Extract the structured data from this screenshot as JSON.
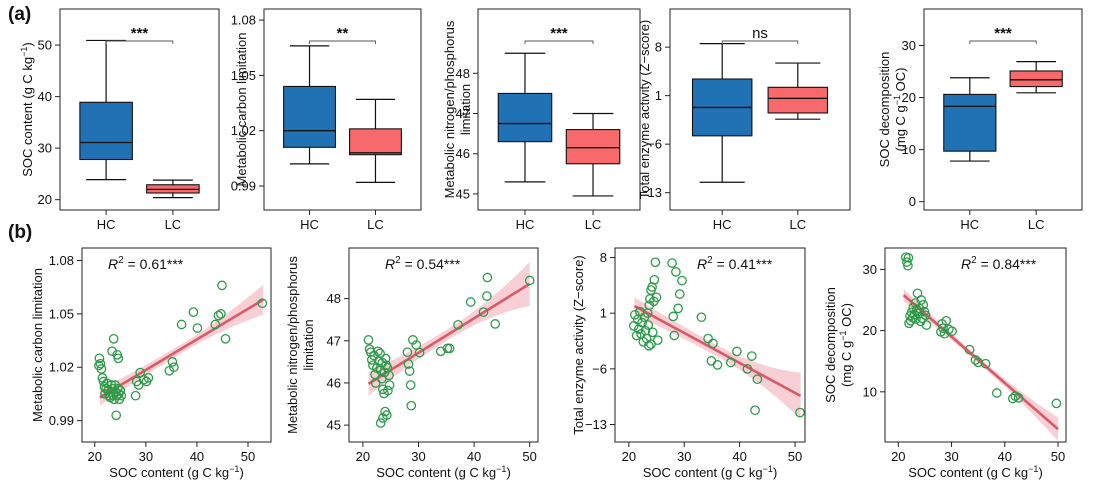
{
  "panel_labels": {
    "a": "(a)",
    "b": "(b)"
  },
  "chart_data": [
    {
      "type": "box",
      "panel": "a",
      "ylabel": "SOC content (g C kg⁻¹)",
      "ylabel_parts": [
        "SOC content (g C kg",
        "−1",
        ")"
      ],
      "ylim": [
        18,
        57
      ],
      "yticks": [
        20,
        30,
        40,
        50
      ],
      "yticklabels": [
        "20",
        "30",
        "40",
        "50"
      ],
      "categories": [
        "HC",
        "LC"
      ],
      "colors": [
        "#2171b5",
        "#f8696b"
      ],
      "significance": "***",
      "boxes": [
        {
          "min": 23.9,
          "q1": 27.8,
          "median": 31.1,
          "q3": 38.9,
          "max": 50.9
        },
        {
          "min": 20.4,
          "q1": 21.3,
          "median": 22.0,
          "q3": 22.9,
          "max": 23.8
        }
      ]
    },
    {
      "type": "box",
      "panel": "a",
      "ylabel": "Metabolic carbon limitation",
      "ylim": [
        0.977,
        1.086
      ],
      "yticks": [
        0.99,
        1.02,
        1.05,
        1.08
      ],
      "yticklabels": [
        "0.99",
        "1.02",
        "1.05",
        "1.08"
      ],
      "categories": [
        "HC",
        "LC"
      ],
      "colors": [
        "#2171b5",
        "#f8696b"
      ],
      "significance": "**",
      "boxes": [
        {
          "min": 1.002,
          "q1": 1.011,
          "median": 1.02,
          "q3": 1.044,
          "max": 1.066
        },
        {
          "min": 0.992,
          "q1": 1.007,
          "median": 1.008,
          "q3": 1.021,
          "max": 1.037
        }
      ]
    },
    {
      "type": "box",
      "panel": "a",
      "ylabel": "Metabolic nitrogen/phosphorus limitation",
      "ylabel_lines": [
        "Metabolic nitrogen/phosphorus",
        "limitation"
      ],
      "ylim": [
        44.6,
        49.6
      ],
      "yticks": [
        45,
        46,
        47,
        48
      ],
      "yticklabels": [
        "45",
        "46",
        "47",
        "48"
      ],
      "categories": [
        "HC",
        "LC"
      ],
      "colors": [
        "#2171b5",
        "#f8696b"
      ],
      "significance": "***",
      "boxes": [
        {
          "min": 45.3,
          "q1": 46.3,
          "median": 46.75,
          "q3": 47.5,
          "max": 48.5
        },
        {
          "min": 44.95,
          "q1": 45.75,
          "median": 46.15,
          "q3": 46.6,
          "max": 47.0
        }
      ]
    },
    {
      "type": "box",
      "panel": "a",
      "ylabel": "Total enzyme activity (Z−score)",
      "ylim": [
        -15.5,
        13.5
      ],
      "yticks": [
        -13,
        -6,
        1,
        8
      ],
      "yticklabels": [
        "−13",
        "−6",
        "1",
        "8"
      ],
      "categories": [
        "HC",
        "LC"
      ],
      "colors": [
        "#2171b5",
        "#f8696b"
      ],
      "significance": "ns",
      "boxes": [
        {
          "min": -11.5,
          "q1": -4.8,
          "median": -0.7,
          "q3": 3.4,
          "max": 8.5
        },
        {
          "min": -2.4,
          "q1": -1.5,
          "median": 0.6,
          "q3": 2.2,
          "max": 5.7
        }
      ]
    },
    {
      "type": "box",
      "panel": "a",
      "ylabel": "SOC decomposition (mg C g⁻¹ OC)",
      "ylabel_lines": [
        "SOC decomposition",
        "(mg C g",
        "−1",
        " OC)"
      ],
      "ylim": [
        -1.6,
        37
      ],
      "yticks": [
        0,
        10,
        20,
        30
      ],
      "yticklabels": [
        "0",
        "10",
        "20",
        "30"
      ],
      "categories": [
        "HC",
        "LC"
      ],
      "colors": [
        "#2171b5",
        "#f8696b"
      ],
      "significance": "***",
      "boxes": [
        {
          "min": 7.8,
          "q1": 9.7,
          "median": 18.3,
          "q3": 20.6,
          "max": 23.8
        },
        {
          "min": 20.9,
          "q1": 22.1,
          "median": 23.4,
          "q3": 25.1,
          "max": 26.9
        }
      ]
    },
    {
      "type": "scatter",
      "panel": "b",
      "xlabel": "SOC content (g C kg⁻¹)",
      "xlabel_parts": [
        "SOC content (g C kg",
        "−1",
        ")"
      ],
      "ylabel": "Metabolic carbon limitation",
      "annotation": {
        "r2_prefix": "R",
        "sup": "2",
        "text": " = 0.61***"
      },
      "xlim": [
        17.5,
        54.5
      ],
      "ylim": [
        0.978,
        1.087
      ],
      "xticks": [
        20,
        30,
        40,
        50
      ],
      "xticklabels": [
        "20",
        "30",
        "40",
        "50"
      ],
      "yticks": [
        0.99,
        1.02,
        1.05,
        1.08
      ],
      "yticklabels": [
        "0.99",
        "1.02",
        "1.05",
        "1.08"
      ],
      "fit": {
        "x": [
          21,
          53
        ],
        "y": [
          1.003,
          1.058
        ]
      },
      "band_widths": [
        0.0045,
        0.0025,
        0.0085
      ],
      "points": [
        [
          20.8,
          1.021
        ],
        [
          20.9,
          1.025
        ],
        [
          21.1,
          1.022
        ],
        [
          21.3,
          1.019
        ],
        [
          21.5,
          1.014
        ],
        [
          21.7,
          1.012
        ],
        [
          21.9,
          1.009
        ],
        [
          22.0,
          1.005
        ],
        [
          22.2,
          1.008
        ],
        [
          22.4,
          1.011
        ],
        [
          22.6,
          1.007
        ],
        [
          22.8,
          1.004
        ],
        [
          23.0,
          1.003
        ],
        [
          23.2,
          1.006
        ],
        [
          23.3,
          1.01
        ],
        [
          23.5,
          1.008
        ],
        [
          23.6,
          1.004
        ],
        [
          23.8,
          1.002
        ],
        [
          24.0,
          1.01
        ],
        [
          24.1,
          1.006
        ],
        [
          24.3,
          1.004
        ],
        [
          24.5,
          1.008
        ],
        [
          24.7,
          1.005
        ],
        [
          24.8,
          1.002
        ],
        [
          25.0,
          1.007
        ],
        [
          25.2,
          1.004
        ],
        [
          23.4,
          1.029
        ],
        [
          23.7,
          1.036
        ],
        [
          24.4,
          1.027
        ],
        [
          24.6,
          1.025
        ],
        [
          24.2,
          0.993
        ],
        [
          28.0,
          1.004
        ],
        [
          28.2,
          1.012
        ],
        [
          28.6,
          1.01
        ],
        [
          28.9,
          1.017
        ],
        [
          29.6,
          1.013
        ],
        [
          30.1,
          1.012
        ],
        [
          30.5,
          1.014
        ],
        [
          34.6,
          1.018
        ],
        [
          35.2,
          1.023
        ],
        [
          35.5,
          1.02
        ],
        [
          37.0,
          1.044
        ],
        [
          39.3,
          1.051
        ],
        [
          40.1,
          1.042
        ],
        [
          43.6,
          1.044
        ],
        [
          44.2,
          1.049
        ],
        [
          44.7,
          1.05
        ],
        [
          44.9,
          1.066
        ],
        [
          45.6,
          1.036
        ],
        [
          52.8,
          1.056
        ]
      ]
    },
    {
      "type": "scatter",
      "panel": "b",
      "xlabel": "SOC content (g C kg⁻¹)",
      "xlabel_parts": [
        "SOC content (g C kg",
        "−1",
        ")"
      ],
      "ylabel": "Metabolic nitrogen/phosphorus limitation",
      "ylabel_lines": [
        "Metabolic nitrogen/phosphorus",
        "limitation"
      ],
      "annotation": {
        "r2_prefix": "R",
        "sup": "2",
        "text": " = 0.54***"
      },
      "xlim": [
        17.5,
        51.5
      ],
      "ylim": [
        44.6,
        49.2
      ],
      "xticks": [
        20,
        30,
        40,
        50
      ],
      "xticklabels": [
        "20",
        "30",
        "40",
        "50"
      ],
      "yticks": [
        45,
        46,
        47,
        48
      ],
      "yticklabels": [
        "45",
        "46",
        "47",
        "48"
      ],
      "fit": {
        "x": [
          21,
          50
        ],
        "y": [
          45.98,
          48.35
        ]
      },
      "band_widths": [
        0.28,
        0.13,
        0.52
      ],
      "points": [
        [
          21.0,
          47.02
        ],
        [
          21.2,
          46.8
        ],
        [
          21.4,
          46.73
        ],
        [
          21.6,
          46.55
        ],
        [
          21.8,
          46.42
        ],
        [
          22.0,
          46.65
        ],
        [
          22.2,
          46.2
        ],
        [
          22.3,
          46.0
        ],
        [
          22.5,
          46.35
        ],
        [
          22.7,
          46.75
        ],
        [
          22.9,
          46.52
        ],
        [
          23.1,
          46.7
        ],
        [
          23.2,
          46.3
        ],
        [
          23.4,
          46.1
        ],
        [
          23.5,
          46.48
        ],
        [
          23.6,
          45.85
        ],
        [
          23.8,
          45.75
        ],
        [
          23.9,
          46.25
        ],
        [
          24.1,
          46.58
        ],
        [
          24.2,
          46.42
        ],
        [
          24.4,
          46.36
        ],
        [
          24.5,
          45.82
        ],
        [
          24.7,
          46.18
        ],
        [
          24.8,
          45.95
        ],
        [
          23.6,
          45.17
        ],
        [
          24.0,
          45.32
        ],
        [
          24.3,
          45.24
        ],
        [
          23.2,
          45.05
        ],
        [
          28.0,
          46.73
        ],
        [
          28.2,
          46.45
        ],
        [
          28.4,
          46.28
        ],
        [
          28.6,
          45.95
        ],
        [
          28.7,
          45.46
        ],
        [
          29.0,
          47.02
        ],
        [
          29.6,
          46.9
        ],
        [
          30.2,
          46.72
        ],
        [
          34.0,
          46.75
        ],
        [
          35.2,
          46.82
        ],
        [
          35.6,
          46.82
        ],
        [
          37.1,
          47.38
        ],
        [
          39.4,
          47.92
        ],
        [
          41.7,
          47.68
        ],
        [
          42.3,
          48.06
        ],
        [
          42.4,
          48.5
        ],
        [
          43.8,
          47.4
        ],
        [
          50.0,
          48.43
        ]
      ]
    },
    {
      "type": "scatter",
      "panel": "b",
      "xlabel": "SOC content (g C kg⁻¹)",
      "xlabel_parts": [
        "SOC content (g C kg",
        "−1",
        ")"
      ],
      "ylabel": "Total enzyme activity (Z−score)",
      "annotation": {
        "r2_prefix": "R",
        "sup": "2",
        "text": " = 0.41***"
      },
      "xlim": [
        17.5,
        51.8
      ],
      "ylim": [
        -15.2,
        9.2
      ],
      "xticks": [
        20,
        30,
        40,
        50
      ],
      "xticklabels": [
        "20",
        "30",
        "40",
        "50"
      ],
      "yticks": [
        -13,
        -6,
        1,
        8
      ],
      "yticklabels": [
        "−13",
        "−6",
        "1",
        "8"
      ],
      "fit": {
        "x": [
          21,
          51
        ],
        "y": [
          1.9,
          -9.4
        ]
      },
      "band_widths": [
        1.1,
        0.7,
        2.9
      ],
      "points": [
        [
          20.9,
          -0.6
        ],
        [
          21.1,
          0.8
        ],
        [
          21.4,
          -1.8
        ],
        [
          21.6,
          0.2
        ],
        [
          21.8,
          -1.0
        ],
        [
          22.0,
          1.2
        ],
        [
          22.2,
          -1.6
        ],
        [
          22.4,
          -0.2
        ],
        [
          22.6,
          -2.6
        ],
        [
          22.8,
          0.5
        ],
        [
          23.0,
          -1.2
        ],
        [
          23.2,
          -2.2
        ],
        [
          23.4,
          1.0
        ],
        [
          23.5,
          -0.5
        ],
        [
          23.7,
          2.0
        ],
        [
          23.8,
          2.8
        ],
        [
          24.0,
          3.9
        ],
        [
          24.2,
          4.3
        ],
        [
          24.3,
          -1.4
        ],
        [
          24.5,
          2.5
        ],
        [
          24.6,
          5.2
        ],
        [
          24.8,
          7.4
        ],
        [
          25.0,
          3.0
        ],
        [
          25.2,
          -2.4
        ],
        [
          23.6,
          -3.1
        ],
        [
          24.0,
          -2.9
        ],
        [
          27.8,
          7.3
        ],
        [
          28.0,
          0.6
        ],
        [
          28.2,
          -1.8
        ],
        [
          28.5,
          6.2
        ],
        [
          28.9,
          1.6
        ],
        [
          29.2,
          3.4
        ],
        [
          29.6,
          5.1
        ],
        [
          33.1,
          0.5
        ],
        [
          34.3,
          -2.2
        ],
        [
          34.9,
          -5.0
        ],
        [
          35.2,
          -2.8
        ],
        [
          36.0,
          -5.5
        ],
        [
          38.4,
          -5.2
        ],
        [
          39.5,
          -3.8
        ],
        [
          41.4,
          -6.0
        ],
        [
          42.2,
          -4.4
        ],
        [
          42.8,
          -11.2
        ],
        [
          43.2,
          -7.3
        ],
        [
          50.9,
          -11.5
        ]
      ]
    },
    {
      "type": "scatter",
      "panel": "b",
      "xlabel": "SOC content (g C kg⁻¹)",
      "xlabel_parts": [
        "SOC content (g C kg",
        "−1",
        ")"
      ],
      "ylabel": "SOC decomposition (mg C g⁻¹ OC)",
      "ylabel_lines": [
        "SOC decomposition",
        "(mg C g",
        "−1",
        " OC)"
      ],
      "annotation": {
        "r2_prefix": "R",
        "sup": "2",
        "text": " = 0.84***"
      },
      "xlim": [
        17.5,
        51.5
      ],
      "ylim": [
        1.8,
        33.5
      ],
      "xticks": [
        20,
        30,
        40,
        50
      ],
      "xticklabels": [
        "20",
        "30",
        "40",
        "50"
      ],
      "yticks": [
        10,
        20,
        30
      ],
      "yticklabels": [
        "10",
        "20",
        "30"
      ],
      "fit": {
        "x": [
          21,
          50
        ],
        "y": [
          25.8,
          3.9
        ]
      },
      "band_widths": [
        1.0,
        0.5,
        1.9
      ],
      "points": [
        [
          21.4,
          32.0
        ],
        [
          21.6,
          31.2
        ],
        [
          21.8,
          30.6
        ],
        [
          21.9,
          31.9
        ],
        [
          22.0,
          21.2
        ],
        [
          22.2,
          22.4
        ],
        [
          22.3,
          21.6
        ],
        [
          22.5,
          23.0
        ],
        [
          22.7,
          22.1
        ],
        [
          22.8,
          23.8
        ],
        [
          23.0,
          22.6
        ],
        [
          23.2,
          24.5
        ],
        [
          23.3,
          21.9
        ],
        [
          23.5,
          23.4
        ],
        [
          23.6,
          26.1
        ],
        [
          23.8,
          22.8
        ],
        [
          24.0,
          23.6
        ],
        [
          24.2,
          21.5
        ],
        [
          24.3,
          25.0
        ],
        [
          24.5,
          22.0
        ],
        [
          24.7,
          24.2
        ],
        [
          24.9,
          23.1
        ],
        [
          25.1,
          22.5
        ],
        [
          25.3,
          20.9
        ],
        [
          28.0,
          19.8
        ],
        [
          28.2,
          21.1
        ],
        [
          28.4,
          20.4
        ],
        [
          28.7,
          19.5
        ],
        [
          29.0,
          21.6
        ],
        [
          29.5,
          20.2
        ],
        [
          30.1,
          19.9
        ],
        [
          33.4,
          16.9
        ],
        [
          34.5,
          15.2
        ],
        [
          35.0,
          14.8
        ],
        [
          36.4,
          14.6
        ],
        [
          38.5,
          9.8
        ],
        [
          41.5,
          8.9
        ],
        [
          42.0,
          9.3
        ],
        [
          42.6,
          9.0
        ],
        [
          49.7,
          8.1
        ]
      ]
    }
  ]
}
